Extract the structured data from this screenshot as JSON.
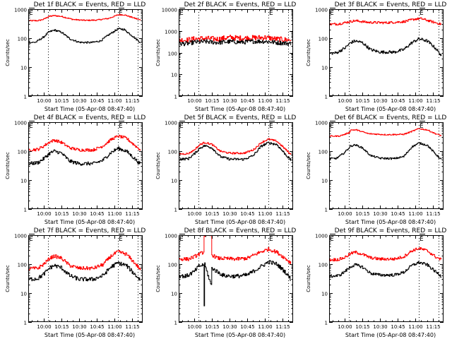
{
  "figure": {
    "background": "#ffffff",
    "axis_color": "#000000",
    "events_color": "#000000",
    "lld_color": "#ff0000"
  },
  "chart_data": [
    {
      "type": "line",
      "title": "Det 1f BLACK = Events, RED = LLD",
      "xlabel": "Start Time (05-Apr-08 08:47:40)",
      "ylabel": "Counts/sec",
      "yscale": "log",
      "ylim": [
        1,
        1000
      ],
      "ytick_labels": [
        "1",
        "10",
        "100",
        "1000"
      ],
      "xlim": [
        "09:47",
        "11:24"
      ],
      "xtick_labels": [
        "10:00",
        "10:15",
        "10:30",
        "10:45",
        "11:00",
        "11:15"
      ],
      "vlines_dotted": [
        "10:04",
        "11:03",
        "11:20"
      ],
      "markers": [
        {
          "label": "E",
          "time": "09:47"
        },
        {
          "label": "E",
          "time": "11:03"
        }
      ],
      "series": [
        {
          "name": "LLD (red)",
          "noise": 0.02,
          "x": [
            "09:47",
            "09:55",
            "10:00",
            "10:04",
            "10:09",
            "10:15",
            "10:25",
            "10:35",
            "10:45",
            "10:55",
            "11:03",
            "11:08",
            "11:15",
            "11:22"
          ],
          "values": [
            400,
            400,
            450,
            560,
            600,
            560,
            440,
            410,
            420,
            480,
            640,
            640,
            520,
            420
          ]
        },
        {
          "name": "Events (black)",
          "noise": 0.03,
          "x": [
            "09:47",
            "09:53",
            "10:00",
            "10:04",
            "10:09",
            "10:15",
            "10:22",
            "10:30",
            "10:40",
            "10:48",
            "10:55",
            "11:03",
            "11:08",
            "11:15",
            "11:22"
          ],
          "values": [
            70,
            72,
            110,
            160,
            190,
            160,
            95,
            72,
            70,
            80,
            130,
            210,
            200,
            120,
            70
          ]
        }
      ]
    },
    {
      "type": "line",
      "title": "Det 2f BLACK = Events, RED = LLD",
      "xlabel": "Start Time (05-Apr-08 08:47:40)",
      "ylabel": "Counts/sec",
      "yscale": "log",
      "ylim": [
        1,
        10000
      ],
      "ytick_labels": [
        "1",
        "10",
        "100",
        "1000",
        "10000"
      ],
      "xlim": [
        "09:47",
        "11:24"
      ],
      "xtick_labels": [
        "10:00",
        "10:15",
        "10:30",
        "10:45",
        "11:00",
        "11:15"
      ],
      "vlines_dotted": [
        "10:04",
        "11:03",
        "11:20"
      ],
      "markers": [
        {
          "label": "E",
          "time": "09:47"
        },
        {
          "label": "E",
          "time": "11:03"
        }
      ],
      "series": [
        {
          "name": "LLD (red)",
          "noise": 0.12,
          "x": [
            "09:47",
            "09:54",
            "10:00",
            "10:10",
            "10:20",
            "10:30",
            "10:40",
            "10:50",
            "11:00",
            "11:10",
            "11:22"
          ],
          "values": [
            380,
            380,
            430,
            450,
            420,
            500,
            460,
            480,
            500,
            420,
            380
          ]
        },
        {
          "name": "Events (black)",
          "noise": 0.1,
          "x": [
            "09:47",
            "09:54",
            "10:00",
            "10:10",
            "10:20",
            "10:30",
            "10:40",
            "10:50",
            "11:00",
            "11:10",
            "11:22"
          ],
          "values": [
            260,
            260,
            300,
            320,
            290,
            320,
            300,
            330,
            330,
            290,
            260
          ]
        }
      ]
    },
    {
      "type": "line",
      "title": "Det 3f BLACK = Events, RED = LLD",
      "xlabel": "Start Time (05-Apr-08 08:47:40)",
      "ylabel": "Counts/sec",
      "yscale": "log",
      "ylim": [
        1,
        1000
      ],
      "ytick_labels": [
        "1",
        "10",
        "100",
        "1000"
      ],
      "xlim": [
        "09:47",
        "11:24"
      ],
      "xtick_labels": [
        "10:00",
        "10:15",
        "10:30",
        "10:45",
        "11:00",
        "11:15"
      ],
      "vlines_dotted": [
        "10:04",
        "11:03",
        "11:20"
      ],
      "markers": [
        {
          "label": "E",
          "time": "09:47"
        },
        {
          "label": "E",
          "time": "11:03"
        }
      ],
      "series": [
        {
          "name": "LLD (red)",
          "noise": 0.04,
          "x": [
            "09:47",
            "09:55",
            "10:04",
            "10:09",
            "10:20",
            "10:35",
            "10:50",
            "11:00",
            "11:05",
            "11:15",
            "11:22"
          ],
          "values": [
            300,
            310,
            370,
            400,
            350,
            340,
            370,
            460,
            470,
            360,
            300
          ]
        },
        {
          "name": "Events (black)",
          "noise": 0.05,
          "x": [
            "09:47",
            "09:53",
            "10:00",
            "10:05",
            "10:09",
            "10:15",
            "10:22",
            "10:30",
            "10:42",
            "10:50",
            "10:57",
            "11:03",
            "11:10",
            "11:17",
            "11:22"
          ],
          "values": [
            30,
            31,
            45,
            70,
            80,
            70,
            40,
            33,
            33,
            40,
            70,
            95,
            80,
            45,
            25
          ]
        }
      ]
    },
    {
      "type": "line",
      "title": "Det 4f BLACK = Events, RED = LLD",
      "xlabel": "Start Time (05-Apr-08 08:47:40)",
      "ylabel": "Counts/sec",
      "yscale": "log",
      "ylim": [
        1,
        1000
      ],
      "ytick_labels": [
        "1",
        "10",
        "100",
        "1000"
      ],
      "xlim": [
        "09:47",
        "11:24"
      ],
      "xtick_labels": [
        "10:00",
        "10:15",
        "10:30",
        "10:45",
        "11:00",
        "11:15"
      ],
      "vlines_dotted": [
        "10:04",
        "11:03",
        "11:20"
      ],
      "markers": [
        {
          "label": "E",
          "time": "09:47"
        },
        {
          "label": "E",
          "time": "11:03"
        }
      ],
      "series": [
        {
          "name": "LLD (red)",
          "noise": 0.05,
          "x": [
            "09:47",
            "09:55",
            "10:00",
            "10:05",
            "10:09",
            "10:15",
            "10:22",
            "10:30",
            "10:42",
            "10:50",
            "10:57",
            "11:03",
            "11:10",
            "11:17",
            "11:22"
          ],
          "values": [
            110,
            115,
            150,
            210,
            240,
            200,
            130,
            110,
            110,
            150,
            250,
            330,
            280,
            160,
            110
          ]
        },
        {
          "name": "Events (black)",
          "noise": 0.06,
          "x": [
            "09:47",
            "09:55",
            "10:00",
            "10:05",
            "10:09",
            "10:15",
            "10:22",
            "10:30",
            "10:42",
            "10:50",
            "10:57",
            "11:03",
            "11:10",
            "11:17",
            "11:22"
          ],
          "values": [
            37,
            40,
            55,
            85,
            100,
            85,
            45,
            37,
            37,
            48,
            90,
            125,
            100,
            55,
            35
          ]
        }
      ]
    },
    {
      "type": "line",
      "title": "Det 5f BLACK = Events, RED = LLD",
      "xlabel": "Start Time (05-Apr-08 08:47:40)",
      "ylabel": "Counts/sec",
      "yscale": "log",
      "ylim": [
        1,
        1000
      ],
      "ytick_labels": [
        "1",
        "10",
        "100",
        "1000"
      ],
      "xlim": [
        "09:47",
        "11:24"
      ],
      "xtick_labels": [
        "10:00",
        "10:15",
        "10:30",
        "10:45",
        "11:00",
        "11:15"
      ],
      "vlines_dotted": [
        "10:04",
        "11:03",
        "11:20"
      ],
      "markers": [
        {
          "label": "E",
          "time": "09:47"
        },
        {
          "label": "E",
          "time": "11:03"
        }
      ],
      "series": [
        {
          "name": "LLD (red)",
          "noise": 0.03,
          "x": [
            "09:47",
            "09:55",
            "10:00",
            "10:05",
            "10:09",
            "10:15",
            "10:22",
            "10:30",
            "10:42",
            "10:50",
            "10:57",
            "11:03",
            "11:10",
            "11:17",
            "11:22"
          ],
          "values": [
            80,
            82,
            110,
            170,
            200,
            170,
            100,
            85,
            85,
            110,
            200,
            260,
            220,
            120,
            75
          ]
        },
        {
          "name": "Events (black)",
          "noise": 0.04,
          "x": [
            "09:47",
            "09:55",
            "10:00",
            "10:05",
            "10:09",
            "10:15",
            "10:22",
            "10:30",
            "10:42",
            "10:50",
            "10:57",
            "11:03",
            "11:10",
            "11:17",
            "11:22"
          ],
          "values": [
            52,
            55,
            80,
            130,
            155,
            130,
            65,
            53,
            52,
            70,
            150,
            195,
            170,
            80,
            48
          ]
        }
      ]
    },
    {
      "type": "line",
      "title": "Det 6f BLACK = Events, RED = LLD",
      "xlabel": "Start Time (05-Apr-08 08:47:40)",
      "ylabel": "Counts/sec",
      "yscale": "log",
      "ylim": [
        1,
        1000
      ],
      "ytick_labels": [
        "1",
        "10",
        "100",
        "1000"
      ],
      "xlim": [
        "09:47",
        "11:24"
      ],
      "xtick_labels": [
        "10:00",
        "10:15",
        "10:30",
        "10:45",
        "11:00",
        "11:15"
      ],
      "vlines_dotted": [
        "10:04",
        "11:03",
        "11:20"
      ],
      "markers": [
        {
          "label": "E",
          "time": "09:47"
        },
        {
          "label": "E",
          "time": "11:03"
        }
      ],
      "series": [
        {
          "name": "LLD (red)",
          "noise": 0.02,
          "x": [
            "09:47",
            "09:55",
            "10:00",
            "10:04",
            "10:05",
            "10:10",
            "10:20",
            "10:35",
            "10:50",
            "10:57",
            "11:03",
            "11:10",
            "11:17",
            "11:22"
          ],
          "values": [
            330,
            330,
            380,
            440,
            540,
            540,
            400,
            370,
            380,
            480,
            600,
            540,
            400,
            340
          ]
        },
        {
          "name": "Events (black)",
          "noise": 0.03,
          "x": [
            "09:47",
            "09:53",
            "10:00",
            "10:05",
            "10:09",
            "10:15",
            "10:22",
            "10:30",
            "10:42",
            "10:50",
            "10:57",
            "11:03",
            "11:10",
            "11:17",
            "11:22"
          ],
          "values": [
            55,
            56,
            90,
            150,
            165,
            130,
            70,
            57,
            55,
            65,
            140,
            190,
            160,
            80,
            50
          ]
        }
      ]
    },
    {
      "type": "line",
      "title": "Det 7f BLACK = Events, RED = LLD",
      "xlabel": "Start Time (05-Apr-08 08:47:40)",
      "ylabel": "Counts/sec",
      "yscale": "log",
      "ylim": [
        1,
        1000
      ],
      "ytick_labels": [
        "1",
        "10",
        "100",
        "1000"
      ],
      "xlim": [
        "09:47",
        "11:24"
      ],
      "xtick_labels": [
        "10:00",
        "10:15",
        "10:30",
        "10:45",
        "11:00",
        "11:15"
      ],
      "vlines_dotted": [
        "10:04",
        "11:03",
        "11:20"
      ],
      "markers": [
        {
          "label": "E",
          "time": "09:47"
        },
        {
          "label": "E",
          "time": "11:03"
        }
      ],
      "series": [
        {
          "name": "LLD (red)",
          "noise": 0.06,
          "x": [
            "09:47",
            "09:55",
            "10:00",
            "10:05",
            "10:09",
            "10:15",
            "10:22",
            "10:30",
            "10:42",
            "10:50",
            "10:57",
            "11:03",
            "11:10",
            "11:17",
            "11:22"
          ],
          "values": [
            70,
            72,
            100,
            160,
            190,
            160,
            90,
            72,
            72,
            95,
            190,
            270,
            220,
            110,
            65
          ]
        },
        {
          "name": "Events (black)",
          "noise": 0.07,
          "x": [
            "09:47",
            "09:55",
            "10:00",
            "10:05",
            "10:09",
            "10:15",
            "10:22",
            "10:30",
            "10:42",
            "10:50",
            "10:57",
            "11:03",
            "11:10",
            "11:17",
            "11:22"
          ],
          "values": [
            30,
            32,
            45,
            75,
            90,
            75,
            40,
            30,
            30,
            40,
            80,
            110,
            90,
            45,
            28
          ]
        }
      ]
    },
    {
      "type": "line",
      "title": "Det 8f BLACK = Events, RED = LLD",
      "xlabel": "Start Time (05-Apr-08 08:47:40)",
      "ylabel": "Counts/sec",
      "yscale": "log",
      "ylim": [
        1,
        1000
      ],
      "ytick_labels": [
        "1",
        "10",
        "100",
        "1000"
      ],
      "xlim": [
        "09:47",
        "11:24"
      ],
      "xtick_labels": [
        "10:00",
        "10:15",
        "10:30",
        "10:45",
        "11:00",
        "11:15"
      ],
      "vlines_dotted": [
        "10:04",
        "11:03",
        "11:20"
      ],
      "markers": [
        {
          "label": "E",
          "time": "09:47"
        },
        {
          "label": "E",
          "time": "11:03"
        }
      ],
      "series": [
        {
          "name": "LLD (red)",
          "noise": 0.06,
          "x": [
            "09:47",
            "09:55",
            "10:00",
            "10:04",
            "10:08",
            "10:08.5",
            "10:14.5",
            "10:15",
            "10:20",
            "10:35",
            "10:45",
            "10:55",
            "11:03",
            "11:10",
            "11:17",
            "11:22"
          ],
          "values": [
            150,
            150,
            180,
            220,
            260,
            1000,
            1000,
            210,
            160,
            150,
            160,
            250,
            330,
            260,
            160,
            110
          ]
        },
        {
          "name": "Events (black)",
          "noise": 0.07,
          "x": [
            "09:47",
            "09:53",
            "10:00",
            "10:04",
            "10:08",
            "10:08.5",
            "10:09",
            "10:14.5",
            "10:15",
            "10:18",
            "10:25",
            "10:35",
            "10:45",
            "10:55",
            "11:03",
            "11:10",
            "11:17",
            "11:22"
          ],
          "values": [
            40,
            38,
            55,
            85,
            95,
            4,
            95,
            18,
            75,
            60,
            40,
            38,
            42,
            75,
            120,
            100,
            55,
            30
          ]
        }
      ]
    },
    {
      "type": "line",
      "title": "Det 9f BLACK = Events, RED = LLD",
      "xlabel": "Start Time (05-Apr-08 08:47:40)",
      "ylabel": "Counts/sec",
      "yscale": "log",
      "ylim": [
        1,
        1000
      ],
      "ytick_labels": [
        "1",
        "10",
        "100",
        "1000"
      ],
      "xlim": [
        "09:47",
        "11:24"
      ],
      "xtick_labels": [
        "10:00",
        "10:15",
        "10:30",
        "10:45",
        "11:00",
        "11:15"
      ],
      "vlines_dotted": [
        "10:04",
        "11:03",
        "11:20"
      ],
      "markers": [
        {
          "label": "E",
          "time": "09:47"
        },
        {
          "label": "E",
          "time": "11:03"
        }
      ],
      "series": [
        {
          "name": "LLD (red)",
          "noise": 0.05,
          "x": [
            "09:47",
            "09:55",
            "10:00",
            "10:05",
            "10:09",
            "10:15",
            "10:22",
            "10:30",
            "10:42",
            "10:50",
            "10:57",
            "11:03",
            "11:10",
            "11:17",
            "11:22"
          ],
          "values": [
            140,
            145,
            170,
            230,
            260,
            220,
            165,
            150,
            150,
            180,
            290,
            350,
            290,
            180,
            140
          ]
        },
        {
          "name": "Events (black)",
          "noise": 0.05,
          "x": [
            "09:47",
            "09:55",
            "10:00",
            "10:05",
            "10:09",
            "10:15",
            "10:22",
            "10:30",
            "10:42",
            "10:50",
            "10:57",
            "11:03",
            "11:10",
            "11:17",
            "11:22"
          ],
          "values": [
            38,
            40,
            55,
            82,
            95,
            80,
            48,
            42,
            42,
            52,
            90,
            115,
            95,
            55,
            38
          ]
        }
      ]
    }
  ]
}
